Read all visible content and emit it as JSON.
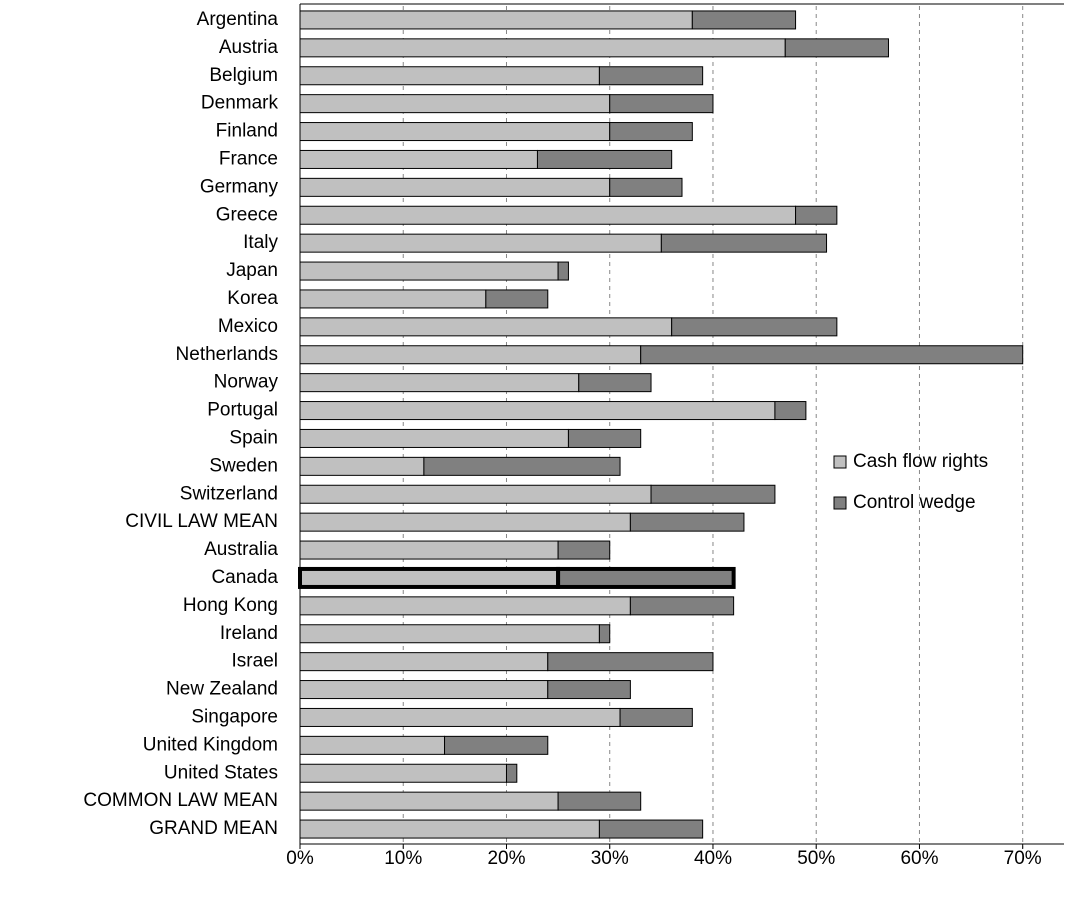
{
  "chart_data": {
    "type": "stacked-barh",
    "categories": [
      "Argentina",
      "Austria",
      "Belgium",
      "Denmark",
      "Finland",
      "France",
      "Germany",
      "Greece",
      "Italy",
      "Japan",
      "Korea",
      "Mexico",
      "Netherlands",
      "Norway",
      "Portugal",
      "Spain",
      "Sweden",
      "Switzerland",
      "CIVIL LAW MEAN",
      "Australia",
      "Canada",
      "Hong Kong",
      "Ireland",
      "Israel",
      "New Zealand",
      "Singapore",
      "United Kingdom",
      "United States",
      "COMMON LAW MEAN",
      "GRAND MEAN"
    ],
    "series": [
      {
        "name": "Cash flow rights",
        "color": "#c0c0c0",
        "values": [
          38,
          47,
          29,
          30,
          30,
          23,
          30,
          48,
          35,
          25,
          18,
          36,
          33,
          27,
          46,
          26,
          12,
          34,
          32,
          25,
          25,
          32,
          29,
          24,
          24,
          31,
          14,
          20,
          25,
          29
        ]
      },
      {
        "name": "Control wedge",
        "color": "#808080",
        "values": [
          10,
          10,
          10,
          10,
          8,
          13,
          7,
          4,
          16,
          1,
          6,
          16,
          37,
          7,
          3,
          7,
          19,
          12,
          11,
          5,
          17,
          10,
          1,
          16,
          8,
          7,
          10,
          1,
          8,
          10
        ]
      }
    ],
    "highlight": "Canada",
    "xlim": [
      0,
      74
    ],
    "xticks": [
      {
        "value": 0,
        "label": "0%"
      },
      {
        "value": 10,
        "label": "10%"
      },
      {
        "value": 20,
        "label": "20%"
      },
      {
        "value": 30,
        "label": "30%"
      },
      {
        "value": 40,
        "label": "40%"
      },
      {
        "value": 50,
        "label": "50%"
      },
      {
        "value": 60,
        "label": "60%"
      },
      {
        "value": 70,
        "label": "70%"
      }
    ],
    "grid": true,
    "legend": "right"
  }
}
